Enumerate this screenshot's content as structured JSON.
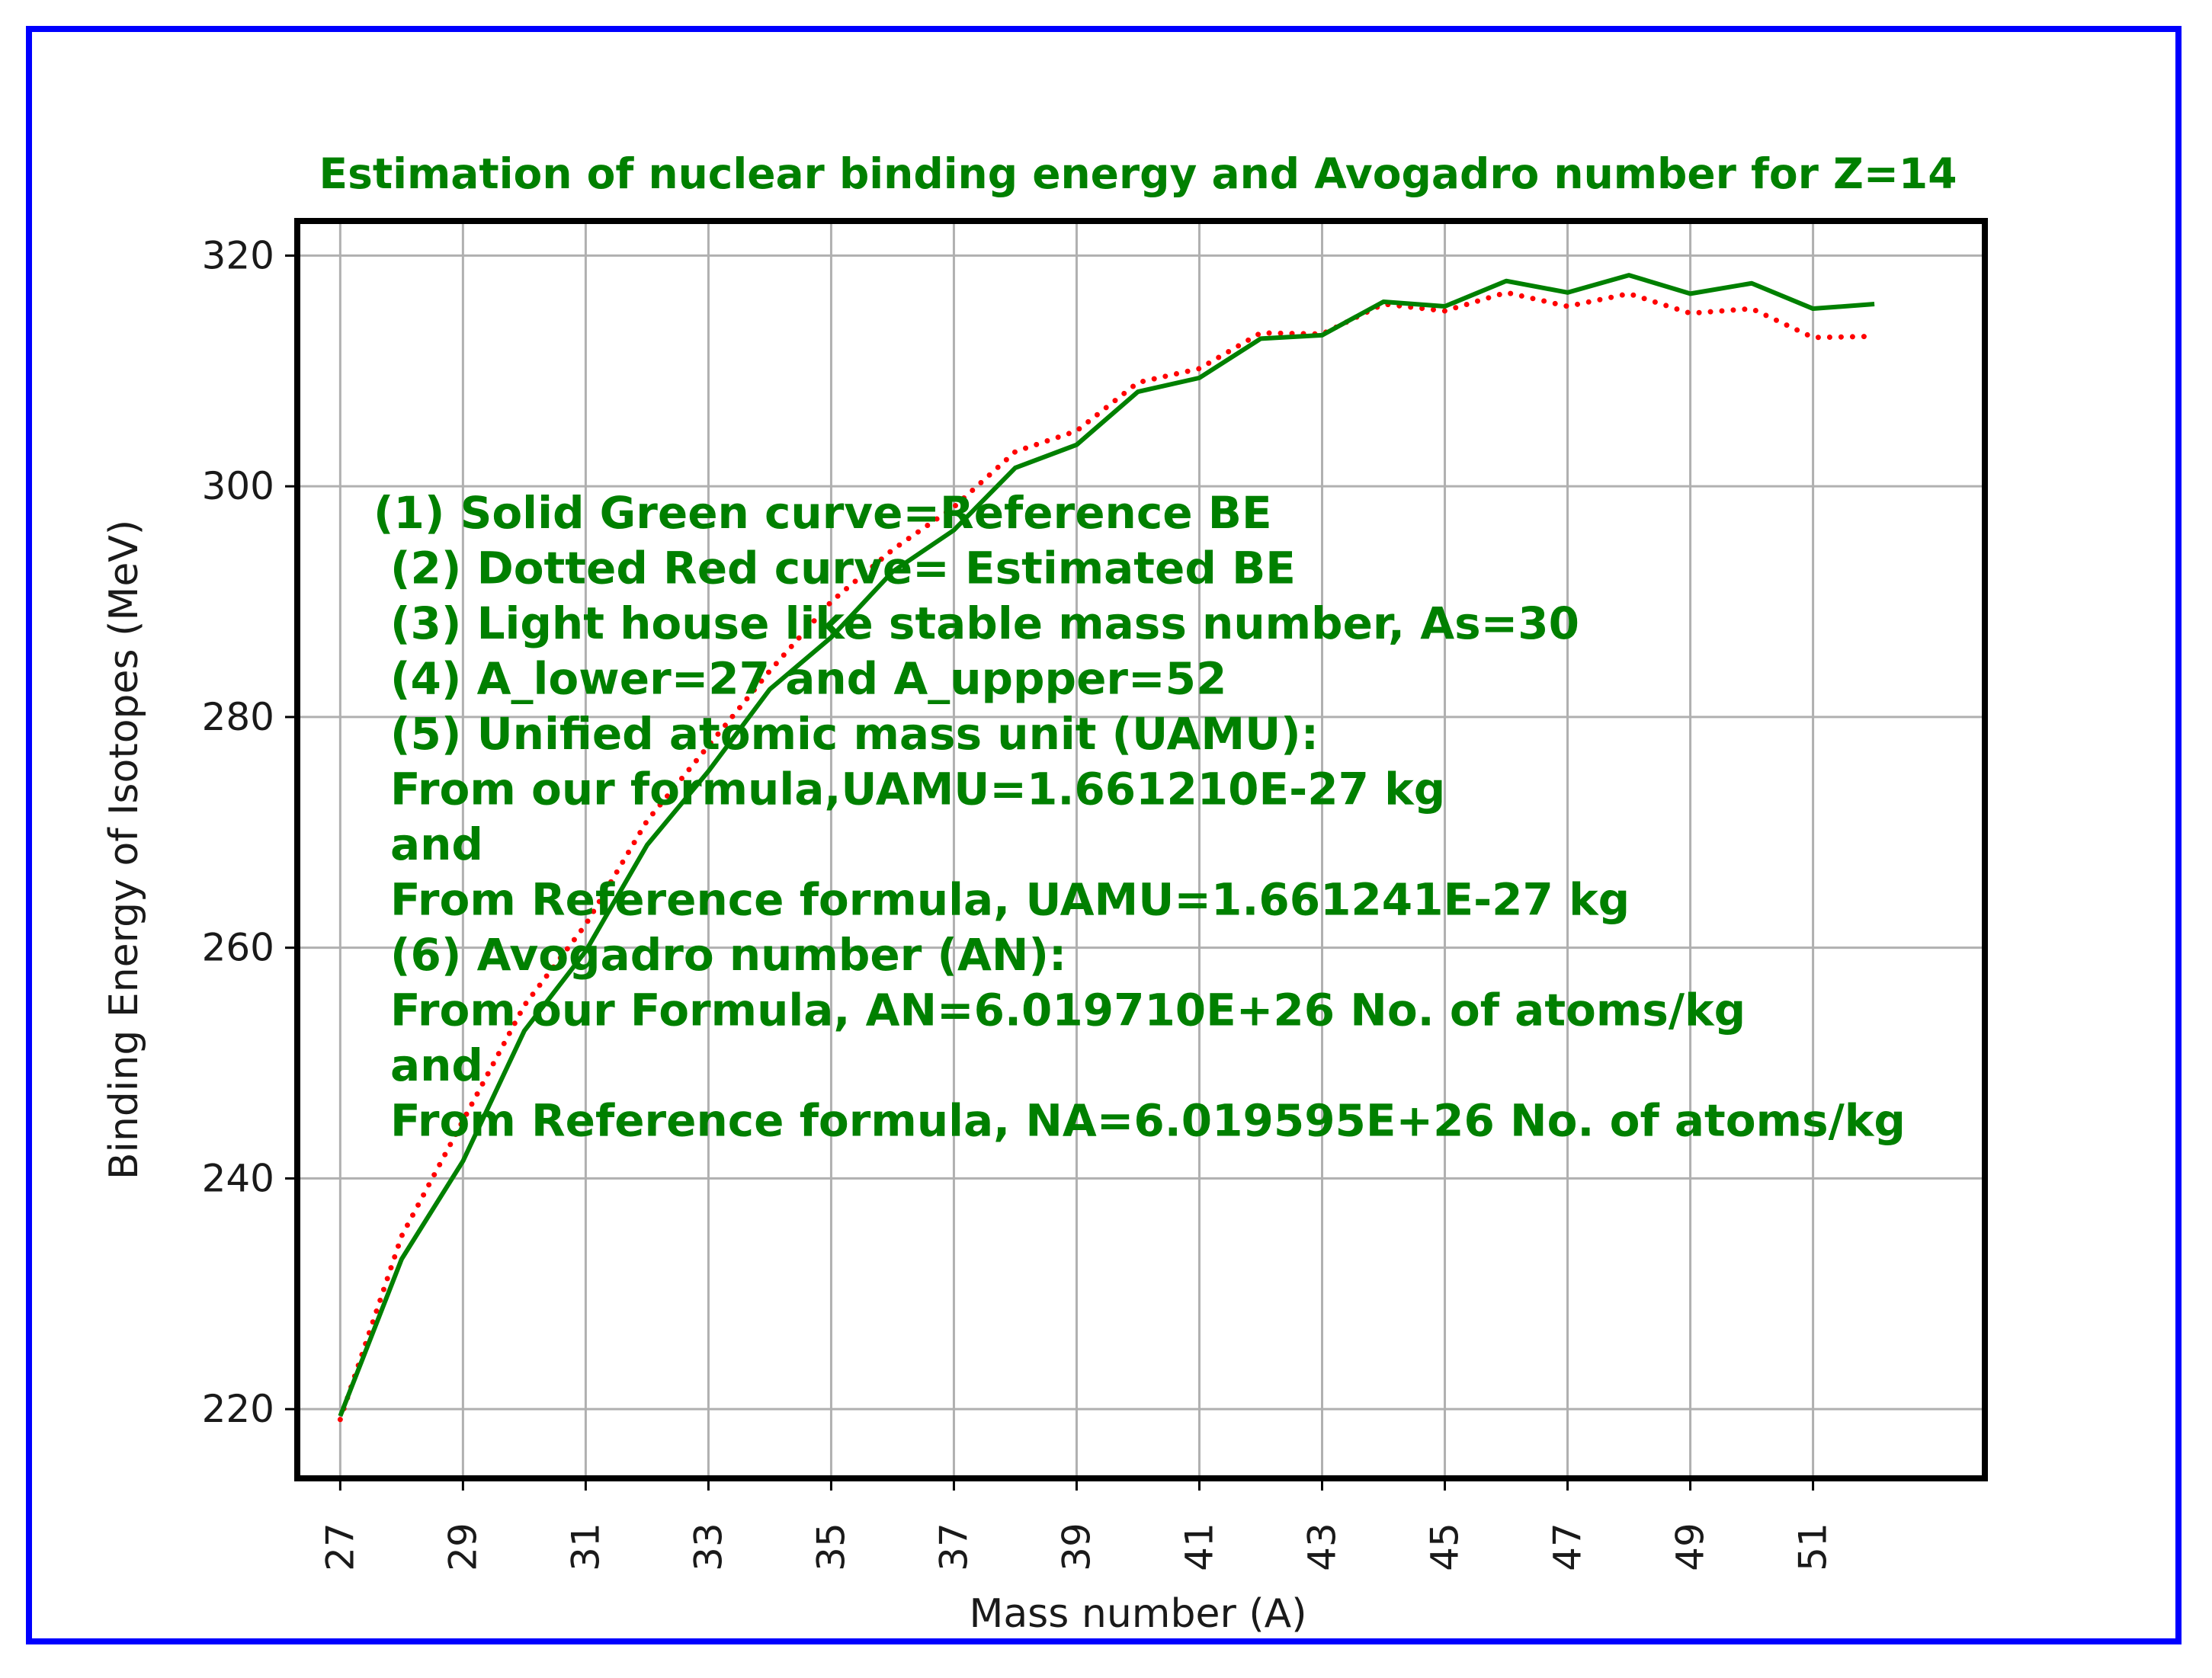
{
  "chart_data": {
    "type": "line",
    "title": "Estimation of nuclear binding energy and Avogadro number for Z=14",
    "xlabel": "Mass number (A)",
    "ylabel": "Binding Energy of Isotopes (MeV)",
    "xlim": [
      26.3,
      53.8
    ],
    "ylim": [
      214,
      323
    ],
    "grid": true,
    "x_ticks": [
      "27",
      "29",
      "31",
      "33",
      "35",
      "37",
      "39",
      "41",
      "43",
      "45",
      "47",
      "49",
      "51"
    ],
    "y_ticks": [
      "220",
      "240",
      "260",
      "280",
      "300",
      "320"
    ],
    "x": [
      27,
      28,
      29,
      30,
      31,
      32,
      33,
      34,
      35,
      36,
      37,
      38,
      39,
      40,
      41,
      42,
      43,
      44,
      45,
      46,
      47,
      48,
      49,
      50,
      51,
      52
    ],
    "series": [
      {
        "name": "Reference BE",
        "style": "solid",
        "color": "#008000",
        "values": [
          219.4,
          233.0,
          241.5,
          252.8,
          259.7,
          268.9,
          275.3,
          282.4,
          286.9,
          292.6,
          296.2,
          301.6,
          303.6,
          308.2,
          309.4,
          312.8,
          313.1,
          316.0,
          315.6,
          317.8,
          316.8,
          318.3,
          316.7,
          317.6,
          315.4,
          315.8
        ]
      },
      {
        "name": "Estimated BE",
        "style": "dotted",
        "color": "#ff0000",
        "values": [
          219.1,
          235.0,
          245.0,
          255.0,
          262.0,
          271.0,
          277.5,
          284.0,
          290.0,
          294.5,
          298.2,
          303.0,
          304.8,
          309.0,
          310.2,
          313.3,
          313.2,
          315.8,
          315.2,
          316.8,
          315.6,
          316.7,
          315.0,
          315.4,
          312.9,
          313.0
        ]
      }
    ],
    "annotation_lines": [
      "(1) Solid Green curve=Reference BE",
      " (2) Dotted Red curve= Estimated BE",
      " (3) Light house like stable mass number, As=30",
      " (4) A_lower=27 and  A_uppper=52",
      " (5) Unified atomic mass unit (UAMU):",
      " From our formula,UAMU=1.661210E-27 kg",
      " and",
      " From Reference formula, UAMU=1.661241E-27 kg",
      " (6) Avogadro number (AN):",
      " From our Formula, AN=6.019710E+26 No. of atoms/kg",
      " and",
      " From Reference formula, NA=6.019595E+26 No. of atoms/kg"
    ],
    "colors": {
      "frame": "#0000ff",
      "text": "#008000",
      "grid": "#b0b0b0"
    }
  }
}
